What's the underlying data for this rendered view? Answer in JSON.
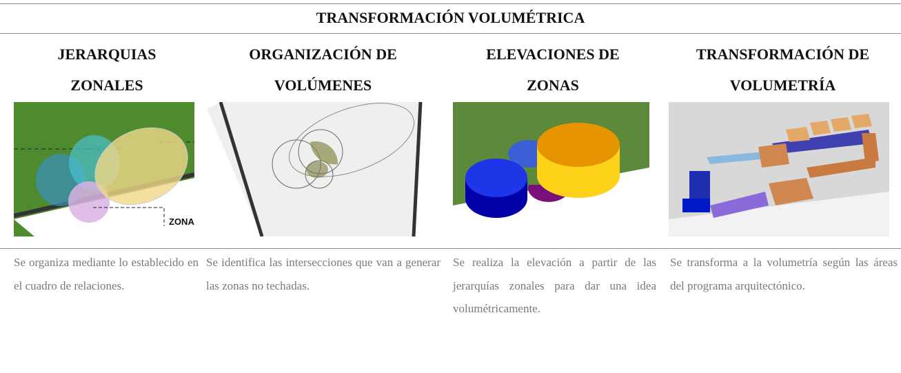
{
  "table": {
    "title": "TRANSFORMACIÓN VOLUMÉTRICA",
    "columns": [
      {
        "heading": [
          "JERARQUIAS",
          "ZONALES"
        ],
        "image_label": "ZONA",
        "description": "Se organiza mediante lo establecido en el cuadro de relaciones."
      },
      {
        "heading": [
          "ORGANIZACIÓN DE",
          "VOLÚMENES"
        ],
        "description": "Se identifica las intersecciones que van a generar las zonas no techadas."
      },
      {
        "heading": [
          "ELEVACIONES DE",
          "ZONAS"
        ],
        "description": "Se realiza la elevación a partir de las jerarquías zonales para dar una idea volumétricamente."
      },
      {
        "heading": [
          "TRANSFORMACIÓN DE",
          "VOLUMETRÍA"
        ],
        "description": "Se transforma a la volumetría según las áreas del programa arquitectónico."
      }
    ]
  }
}
